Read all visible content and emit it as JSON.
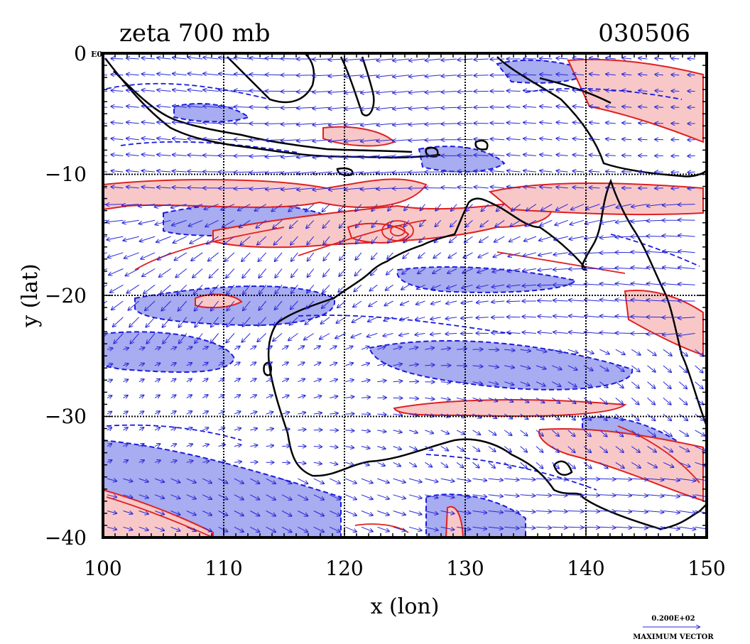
{
  "title": "zeta 700 mb",
  "date_code": "030506",
  "x_axis_label": "x (lon)",
  "y_axis_label": "y (lat)",
  "origin_exponent": "E0",
  "legend": {
    "max_vector_value": "0.200E+02",
    "max_vector_label": "MAXIMUM VECTOR"
  },
  "colors": {
    "positive_vorticity_line": "#e02020",
    "positive_vorticity_fill": "#f8c8c8",
    "negative_vorticity_line": "#1a1ae0",
    "negative_vorticity_fill": "#a8acf0",
    "wind_vector": "#2828d8",
    "coastline": "#000000"
  },
  "map": {
    "lon_range": [
      100,
      150
    ],
    "lat_range": [
      -40,
      0
    ],
    "x_ticks": [
      "100",
      "110",
      "120",
      "130",
      "140",
      "150"
    ],
    "y_ticks": [
      "0",
      "−10",
      "−20",
      "−30",
      "−40"
    ],
    "grid_lon": [
      110,
      120,
      130,
      140
    ],
    "grid_lat": [
      -10,
      -20,
      -30
    ]
  }
}
